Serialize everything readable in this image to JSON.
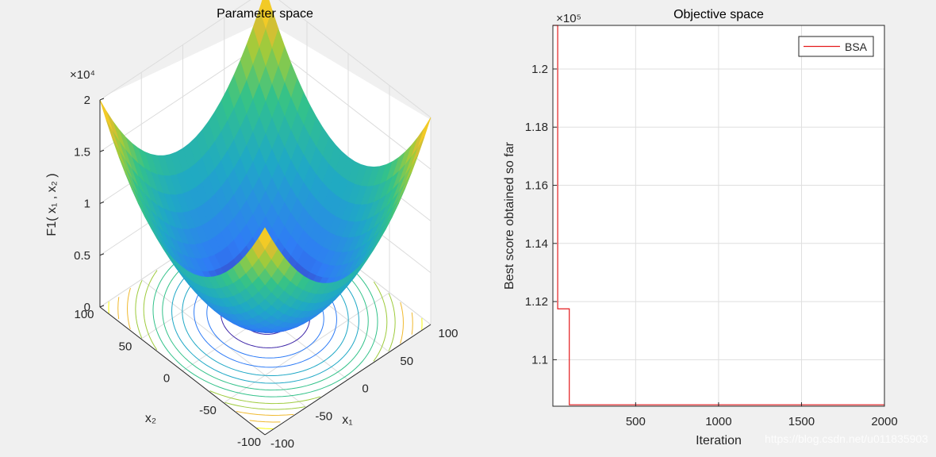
{
  "chart_data": [
    {
      "type": "surface",
      "title": "Parameter space",
      "xlabel": "x₁",
      "ylabel": "x₂",
      "zlabel": "F1( x₁ , x₂ )",
      "z_exponent": "×10⁴",
      "x_ticks": [
        "-100",
        "-50",
        "0",
        "50",
        "100"
      ],
      "y_ticks": [
        "-100",
        "-50",
        "0",
        "50",
        "100"
      ],
      "z_ticks": [
        "0",
        "0.5",
        "1",
        "1.5",
        "2"
      ],
      "xlim": [
        -100,
        100
      ],
      "ylim": [
        -100,
        100
      ],
      "zlim": [
        0,
        20000
      ],
      "grid": true,
      "colormap": [
        "#3e26a8",
        "#2f7cf6",
        "#1fa8c6",
        "#33c28a",
        "#9ecb3c",
        "#f0b92e",
        "#f9fb0e"
      ]
    },
    {
      "type": "line",
      "title": "Objective space",
      "xlabel": "Iteration",
      "ylabel": "Best score obtained so far",
      "y_exponent": "×10⁵",
      "xlim": [
        1,
        2000
      ],
      "ylim": [
        108400,
        121500
      ],
      "x_ticks": [
        "500",
        "1000",
        "1500",
        "2000"
      ],
      "y_ticks": [
        "1.1",
        "1.12",
        "1.14",
        "1.16",
        "1.18",
        "1.2"
      ],
      "grid": true,
      "legend_position": "top-right",
      "series": [
        {
          "name": "BSA",
          "color": "#e41a1c",
          "x": [
            1,
            30,
            30,
            100,
            100,
            2000
          ],
          "y": [
            121500,
            121500,
            111750,
            111750,
            108450,
            108450
          ]
        }
      ]
    }
  ],
  "watermark": "https://blog.csdn.net/u011835903"
}
